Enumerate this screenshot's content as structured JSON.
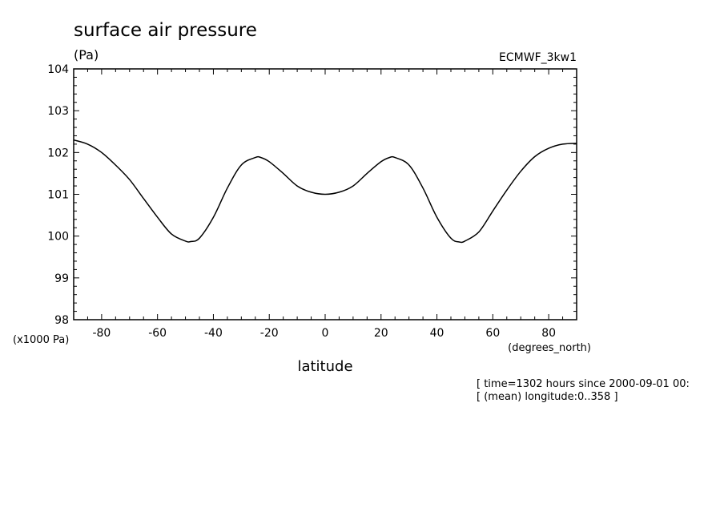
{
  "chart_data": {
    "type": "line",
    "title": "surface air pressure",
    "units_label": "(Pa)",
    "dataset_label": "ECMWF_3kw1",
    "xlabel": "latitude",
    "x_units_label": "(degrees_north)",
    "y_scale_label": "(x1000 Pa)",
    "xlim": [
      -90,
      90
    ],
    "ylim": [
      98,
      104
    ],
    "x_ticks": [
      -80,
      -60,
      -40,
      -20,
      0,
      20,
      40,
      60,
      80
    ],
    "x_tick_labels": [
      "-80",
      "-60",
      "-40",
      "-20",
      "0",
      "20",
      "40",
      "60",
      "80"
    ],
    "y_ticks": [
      98,
      99,
      100,
      101,
      102,
      103,
      104
    ],
    "y_tick_labels": [
      "98",
      "99",
      "100",
      "101",
      "102",
      "103",
      "104"
    ],
    "grid": false,
    "series": [
      {
        "x": [
          -90,
          -85,
          -80,
          -75,
          -70,
          -65,
          -60,
          -55,
          -50,
          -48,
          -45,
          -40,
          -35,
          -30,
          -25,
          -23,
          -20,
          -15,
          -10,
          -5,
          0,
          5,
          10,
          15,
          20,
          23,
          25,
          30,
          35,
          40,
          45,
          48,
          50,
          55,
          60,
          65,
          70,
          75,
          80,
          85,
          90
        ],
        "values": [
          102.3,
          102.2,
          102.0,
          101.7,
          101.35,
          100.9,
          100.45,
          100.05,
          99.88,
          99.87,
          99.95,
          100.45,
          101.15,
          101.7,
          101.88,
          101.88,
          101.78,
          101.5,
          101.2,
          101.05,
          101.0,
          101.05,
          101.2,
          101.5,
          101.78,
          101.88,
          101.88,
          101.7,
          101.15,
          100.45,
          99.95,
          99.86,
          99.88,
          100.1,
          100.6,
          101.1,
          101.55,
          101.9,
          102.1,
          102.2,
          102.22
        ]
      }
    ],
    "info_lines": [
      "[ time=1302 hours since 2000-09-01 00:",
      "[ (mean) longitude:0..358 ]"
    ]
  }
}
